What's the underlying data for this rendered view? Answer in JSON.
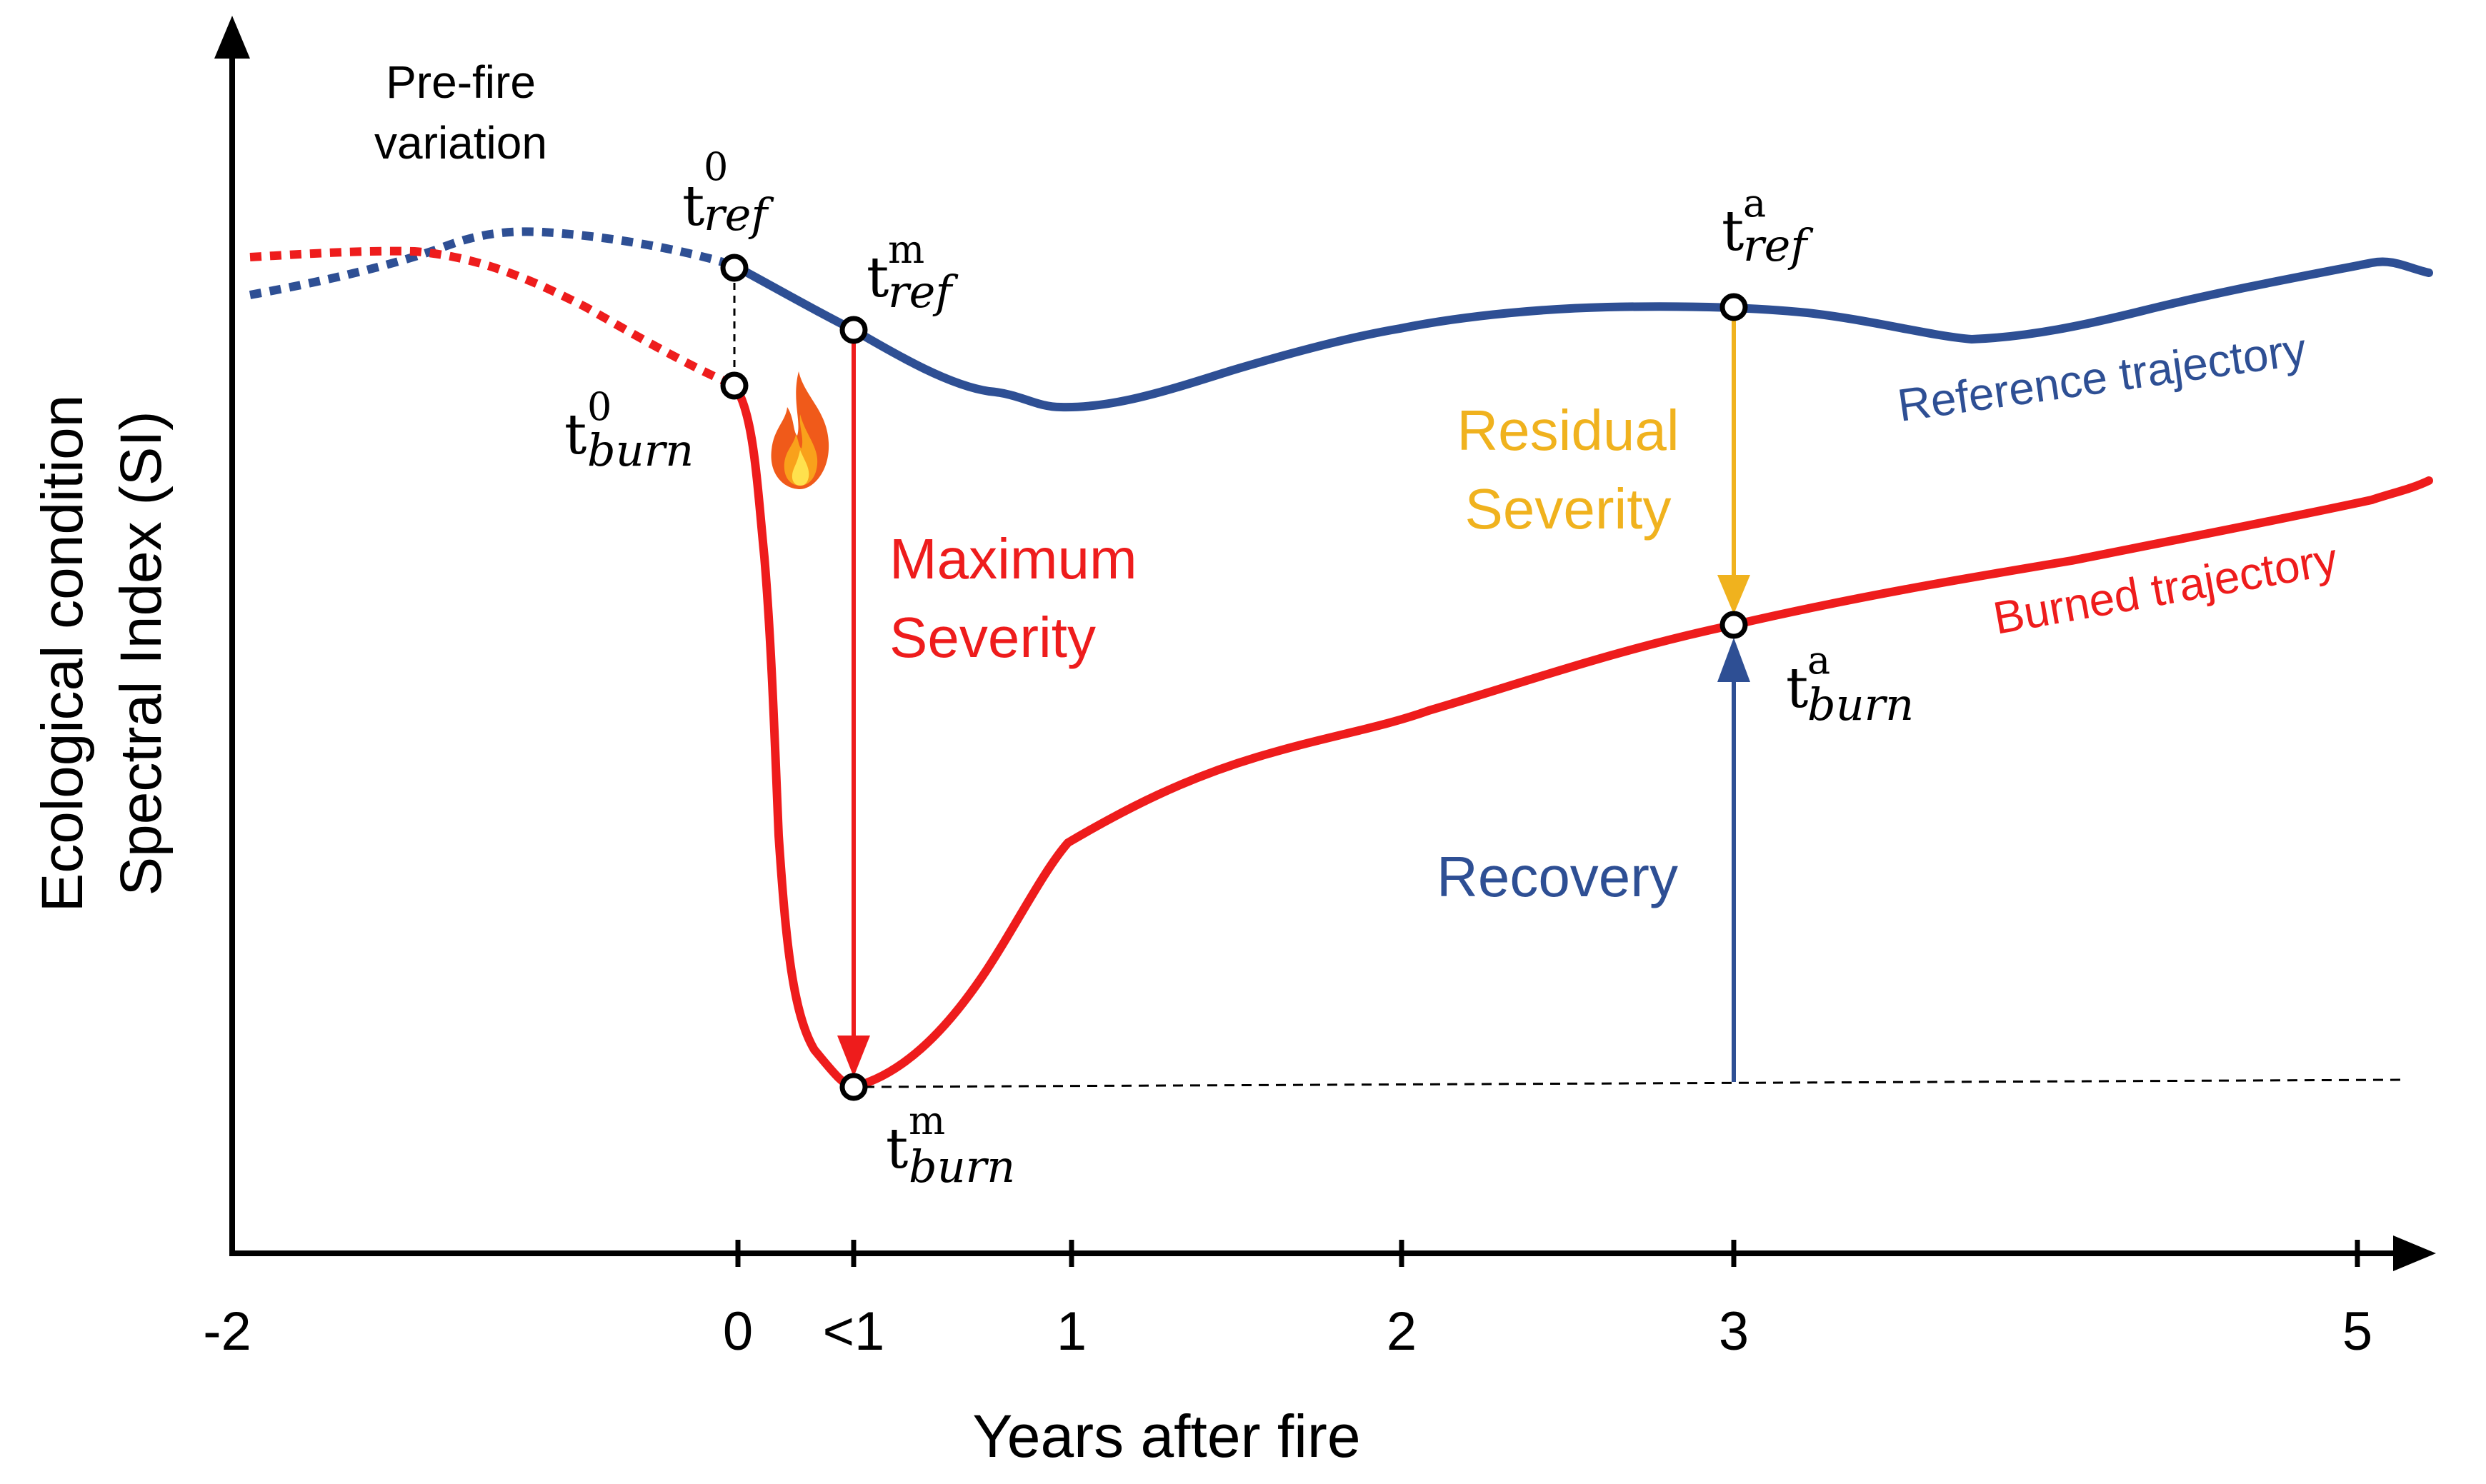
{
  "axes": {
    "y_label_line1": "Ecological condition",
    "y_label_line2": "Spectral Index (SI)",
    "x_label": "Years after fire",
    "x_ticks": [
      "-2",
      "0",
      "<1",
      "1",
      "2",
      "3",
      "5"
    ]
  },
  "annotations": {
    "prefire_line1": "Pre-fire",
    "prefire_line2": "variation",
    "max_severity_line1": "Maximum",
    "max_severity_line2": "Severity",
    "residual_line1": "Residual",
    "residual_line2": "Severity",
    "recovery": "Recovery",
    "reference_trajectory": "Reference trajectory",
    "burned_trajectory": "Burned trajectory"
  },
  "points": {
    "t0_ref": {
      "base": "t",
      "sup": "0",
      "sub": "ref"
    },
    "tm_ref": {
      "base": "t",
      "sup": "m",
      "sub": "ref"
    },
    "ta_ref": {
      "base": "t",
      "sup": "a",
      "sub": "ref"
    },
    "t0_burn": {
      "base": "t",
      "sup": "0",
      "sub": "burn"
    },
    "tm_burn": {
      "base": "t",
      "sup": "m",
      "sub": "burn"
    },
    "ta_burn": {
      "base": "t",
      "sup": "a",
      "sub": "burn"
    }
  },
  "colors": {
    "reference": "#2E4F94",
    "burned": "#EE1C1C",
    "residual": "#F0B21E",
    "axis": "#000000"
  },
  "icons": [
    "fire-icon"
  ]
}
